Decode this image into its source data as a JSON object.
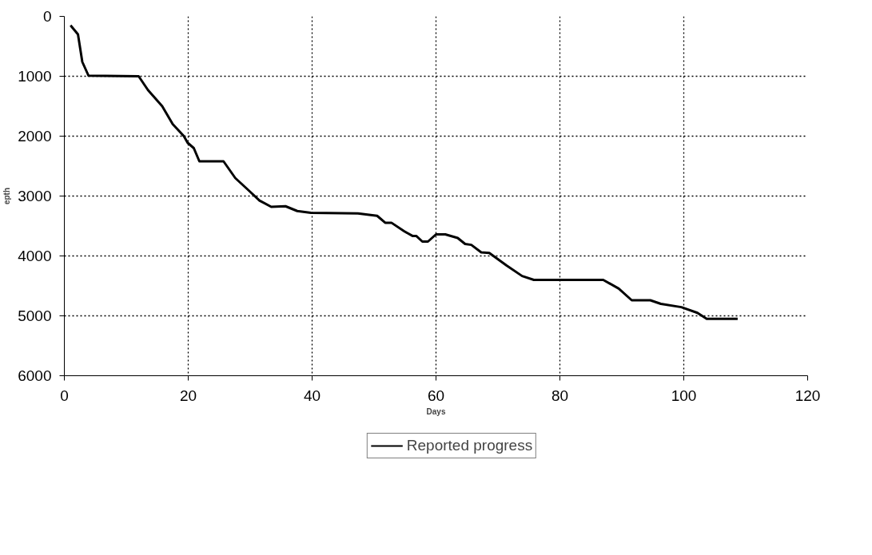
{
  "chart_data": {
    "type": "line",
    "xlabel": "Days",
    "ylabel": "epth",
    "xlim": [
      0,
      120
    ],
    "ylim": [
      6000,
      0
    ],
    "xticks": [
      0,
      20,
      40,
      60,
      80,
      100,
      120
    ],
    "yticks": [
      0,
      1000,
      2000,
      3000,
      4000,
      5000,
      6000
    ],
    "grid": true,
    "legend": "bottom",
    "line_style": "solid",
    "marker": "none",
    "series": [
      {
        "name": "Reported progress",
        "color": "#000000",
        "x": [
          1,
          2.2,
          2.9,
          3.9,
          12,
          13.5,
          15.8,
          17.5,
          19.3,
          19.9,
          20.9,
          21.8,
          25.7,
          27.6,
          29.7,
          31.5,
          33.4,
          35.7,
          37.6,
          39.8,
          47.4,
          50.5,
          51.8,
          52.8,
          54.9,
          56.2,
          56.8,
          57.8,
          58.7,
          60,
          61.5,
          63.5,
          64.7,
          65.7,
          67.3,
          68.6,
          71.4,
          73.9,
          75.8,
          87,
          89.5,
          91.6,
          94.6,
          96.3,
          99.6,
          102.2,
          103.7,
          108.7
        ],
        "values": [
          150,
          300,
          760,
          990,
          1000,
          1230,
          1500,
          1800,
          2000,
          2110,
          2200,
          2420,
          2420,
          2700,
          2900,
          3075,
          3180,
          3170,
          3250,
          3280,
          3290,
          3330,
          3445,
          3445,
          3590,
          3665,
          3665,
          3760,
          3760,
          3640,
          3640,
          3700,
          3800,
          3815,
          3940,
          3950,
          4160,
          4335,
          4400,
          4400,
          4545,
          4740,
          4740,
          4800,
          4855,
          4950,
          5050,
          5050
        ]
      }
    ]
  }
}
